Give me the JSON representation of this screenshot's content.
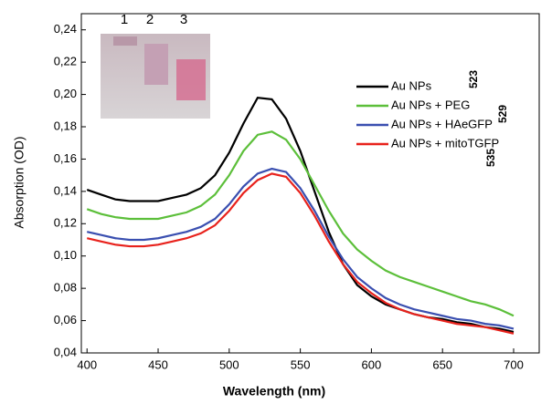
{
  "chart_data": {
    "type": "line",
    "x_label": "Wavelength (nm)",
    "y_label": "Absorption (OD)",
    "x": [
      400,
      410,
      420,
      430,
      440,
      450,
      460,
      470,
      480,
      490,
      500,
      510,
      520,
      530,
      540,
      550,
      560,
      570,
      580,
      590,
      600,
      610,
      620,
      630,
      640,
      650,
      660,
      670,
      680,
      690,
      700
    ],
    "series": [
      {
        "name": "Au NPs",
        "color": "#000000",
        "values": [
          0.141,
          0.138,
          0.135,
          0.134,
          0.134,
          0.134,
          0.136,
          0.138,
          0.142,
          0.15,
          0.164,
          0.182,
          0.198,
          0.197,
          0.185,
          0.165,
          0.14,
          0.115,
          0.095,
          0.082,
          0.075,
          0.07,
          0.067,
          0.064,
          0.062,
          0.061,
          0.059,
          0.058,
          0.056,
          0.055,
          0.053
        ]
      },
      {
        "name": "Au NPs + PEG",
        "color": "#5cbf3a",
        "values": [
          0.129,
          0.126,
          0.124,
          0.123,
          0.123,
          0.123,
          0.125,
          0.127,
          0.131,
          0.138,
          0.15,
          0.165,
          0.175,
          0.177,
          0.172,
          0.16,
          0.144,
          0.128,
          0.114,
          0.104,
          0.097,
          0.091,
          0.087,
          0.084,
          0.081,
          0.078,
          0.075,
          0.072,
          0.07,
          0.067,
          0.063
        ]
      },
      {
        "name": "Au NPs + HAeGFP",
        "color": "#3a4fb0",
        "values": [
          0.115,
          0.113,
          0.111,
          0.11,
          0.11,
          0.111,
          0.113,
          0.115,
          0.118,
          0.123,
          0.132,
          0.143,
          0.151,
          0.154,
          0.152,
          0.142,
          0.128,
          0.112,
          0.098,
          0.087,
          0.08,
          0.074,
          0.07,
          0.067,
          0.065,
          0.063,
          0.061,
          0.06,
          0.058,
          0.057,
          0.055
        ]
      },
      {
        "name": "Au NPs + mitoTGFP",
        "color": "#e8221c",
        "values": [
          0.111,
          0.109,
          0.107,
          0.106,
          0.106,
          0.107,
          0.109,
          0.111,
          0.114,
          0.119,
          0.128,
          0.139,
          0.147,
          0.151,
          0.149,
          0.139,
          0.125,
          0.109,
          0.095,
          0.084,
          0.077,
          0.071,
          0.067,
          0.064,
          0.062,
          0.06,
          0.058,
          0.057,
          0.056,
          0.054,
          0.052
        ]
      }
    ],
    "xlim": [
      396,
      718
    ],
    "ylim": [
      0.04,
      0.25
    ],
    "xticks": [
      400,
      450,
      500,
      550,
      600,
      650,
      700
    ],
    "yticks": [
      {
        "value": 0.04,
        "label": "0,04"
      },
      {
        "value": 0.06,
        "label": "0,06"
      },
      {
        "value": 0.08,
        "label": "0,08"
      },
      {
        "value": 0.1,
        "label": "0,10"
      },
      {
        "value": 0.12,
        "label": "0,12"
      },
      {
        "value": 0.14,
        "label": "0,14"
      },
      {
        "value": 0.16,
        "label": "0,16"
      },
      {
        "value": 0.18,
        "label": "0,18"
      },
      {
        "value": 0.2,
        "label": "0,20"
      },
      {
        "value": 0.22,
        "label": "0,22"
      },
      {
        "value": 0.24,
        "label": "0,24"
      }
    ],
    "annotations": [
      "523",
      "529",
      "535"
    ],
    "inset_labels": [
      "1",
      "2",
      "3"
    ]
  }
}
